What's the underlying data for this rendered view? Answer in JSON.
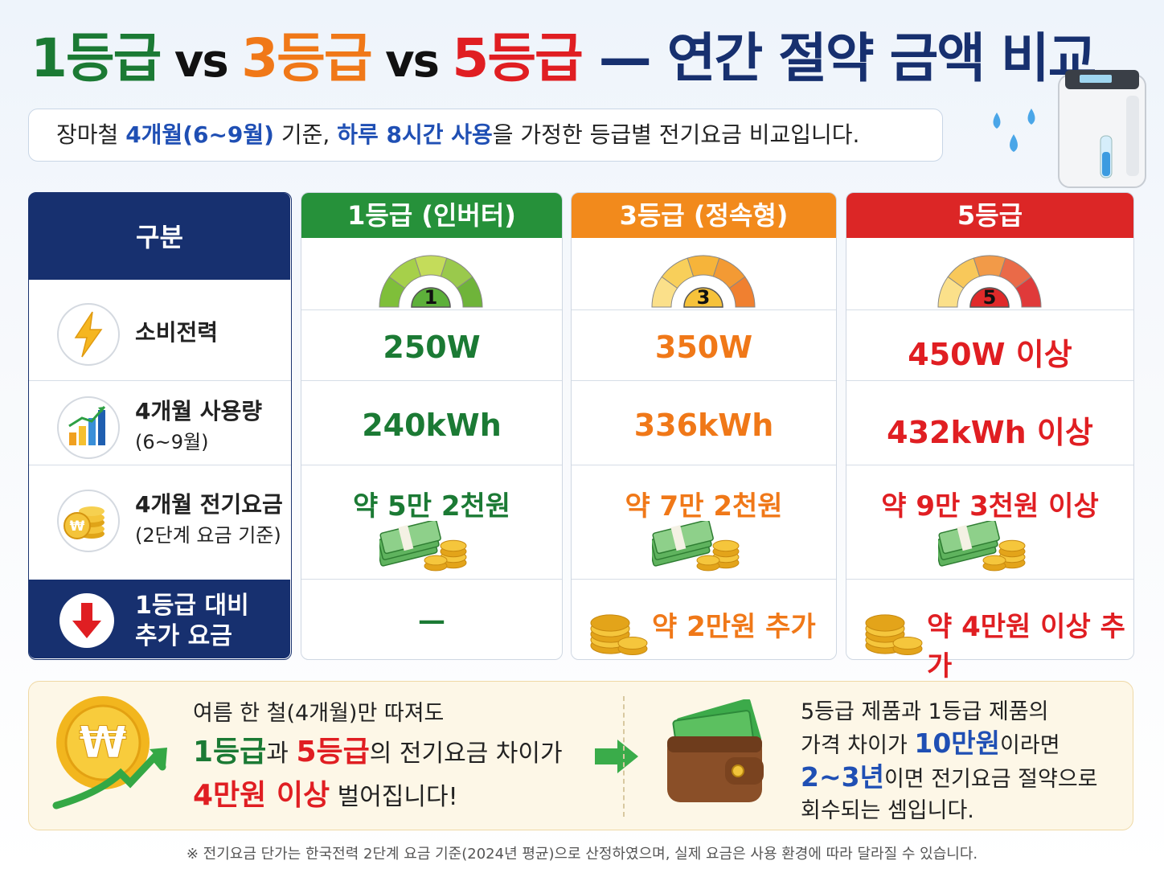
{
  "title": {
    "segments": [
      "1등급",
      " vs ",
      "3등급",
      " vs ",
      "5등급",
      " — 연간 절약 금액 비교"
    ]
  },
  "subtitle": {
    "segments": [
      "장마철 ",
      "4개월(6~9월)",
      " 기준, ",
      "하루 8시간 사용",
      "을 가정한 등급별 전기요금 비교입니다."
    ]
  },
  "currency_symbol": "₩",
  "table": {
    "corner": "구분",
    "columns": [
      {
        "name": "1등급 (인버터)",
        "gauge": "1"
      },
      {
        "name": "3등급 (정속형)",
        "gauge": "3"
      },
      {
        "name": "5등급",
        "gauge": "5"
      }
    ],
    "rows": [
      {
        "label": [
          "소비전력"
        ],
        "values": [
          "250W",
          "350W",
          "450W 이상"
        ]
      },
      {
        "label": [
          "4개월 사용량",
          "(6~9월)"
        ],
        "values": [
          "240kWh",
          "336kWh",
          "432kWh 이상"
        ]
      },
      {
        "label": [
          "4개월 전기요금",
          "(2단계 요금 기준)"
        ],
        "values": [
          "약 5만 2천원",
          "약 7만 2천원",
          "약 9만 3천원 이상"
        ]
      },
      {
        "label": [
          "1등급 대비",
          "추가 요금"
        ],
        "values": [
          "—",
          "약 2만원 추가",
          "약 4만원 이상 추가"
        ]
      }
    ]
  },
  "summary": {
    "left": {
      "line1": "여름 한 철(4개월)만 따져도",
      "line2": [
        "1등급",
        "과 ",
        "5등급",
        "의 전기요금 차이가"
      ],
      "line3": [
        "4만원 이상",
        " 벌어집니다!"
      ]
    },
    "right": {
      "line1": "5등급 제품과 1등급 제품의",
      "line2": [
        "가격 차이가 ",
        "10만원",
        "이라면"
      ],
      "line3": [
        "2~3년",
        "이면 전기요금 절약으로"
      ],
      "line4": "회수되는 셈입니다."
    }
  },
  "footnote": "※ 전기요금 단가는 한국전력 2단계 요금 기준(2024년 평균)으로 산정하였으며, 실제 요금은 사용 환경에 따라 달라질 수 있습니다."
}
